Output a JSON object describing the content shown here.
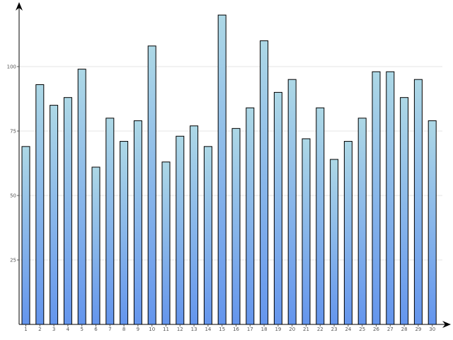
{
  "chart_data": {
    "type": "bar",
    "categories": [
      "1",
      "2",
      "3",
      "4",
      "5",
      "6",
      "7",
      "8",
      "9",
      "10",
      "11",
      "12",
      "13",
      "14",
      "15",
      "16",
      "17",
      "18",
      "19",
      "20",
      "21",
      "22",
      "23",
      "24",
      "25",
      "26",
      "27",
      "28",
      "29",
      "30"
    ],
    "values": [
      69,
      93,
      85,
      88,
      99,
      61,
      80,
      71,
      79,
      108,
      63,
      73,
      77,
      69,
      120,
      76,
      84,
      110,
      90,
      95,
      72,
      84,
      64,
      71,
      80,
      98,
      98,
      88,
      95,
      79
    ],
    "title": "",
    "xlabel": "",
    "ylabel": "",
    "ylim": [
      0,
      125
    ],
    "yticks": [
      {
        "value": 25,
        "label": "25"
      },
      {
        "value": 50,
        "label": "50"
      },
      {
        "value": 75,
        "label": "75"
      },
      {
        "value": 100,
        "label": "100"
      }
    ],
    "grid": true,
    "legend": "none",
    "colors": {
      "bar_top": "#add8e6",
      "bar_bottom": "#6495ed",
      "bar_border": "#000000",
      "grid": "#e6e6e6",
      "axis": "#000000",
      "tick_text": "#555555"
    }
  }
}
